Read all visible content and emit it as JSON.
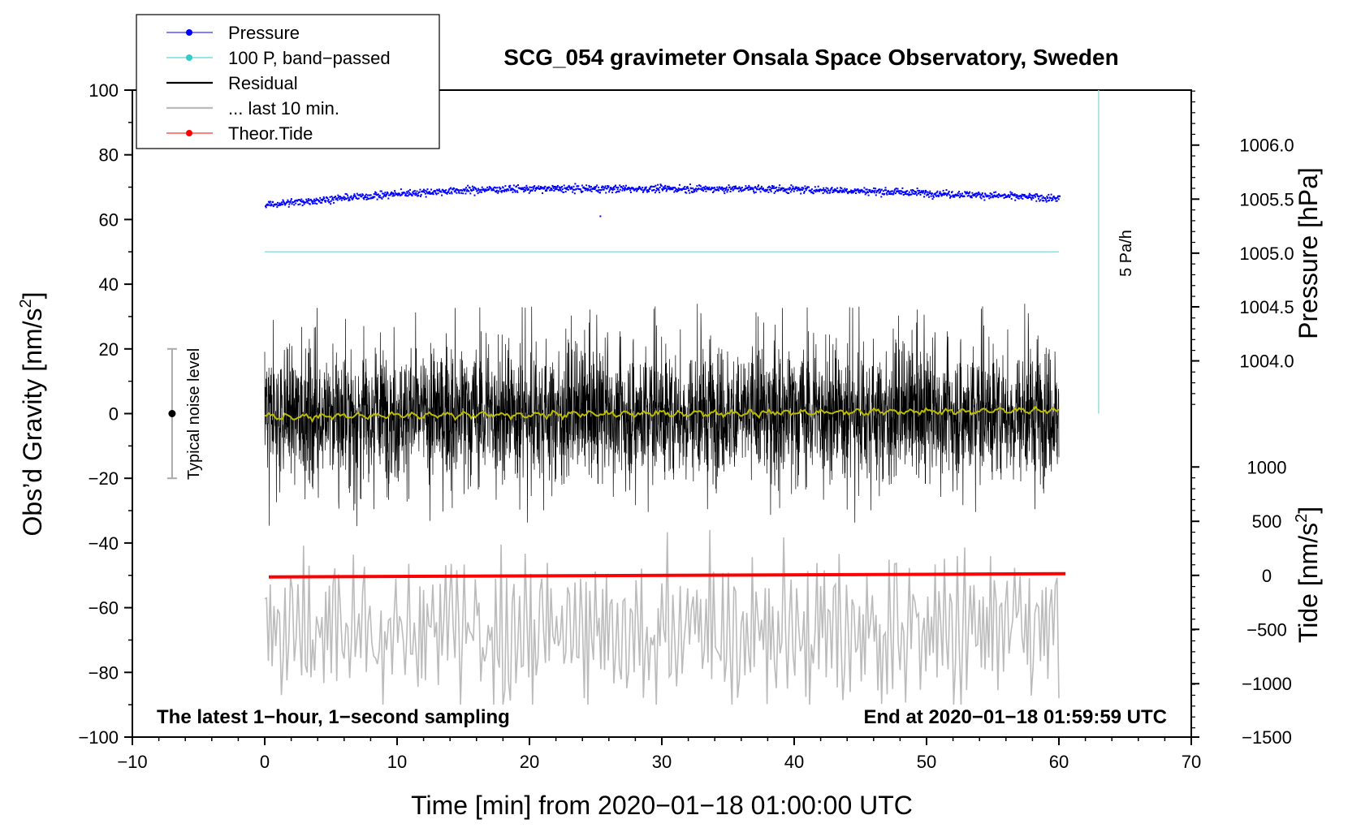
{
  "chart_data": {
    "type": "line",
    "title": "SCG_054 gravimeter Onsala Space Observatory, Sweden",
    "xlabel": "Time [min] from 2020−01−18 01:00:00 UTC",
    "ylabel": "Obs’d Gravity [nm/s²]",
    "ylabel_main": "Obs’d Gravity [nm/s",
    "ylabel_sup": "2",
    "ylabel_end": "]",
    "y2label": "Pressure [hPa]",
    "y3label_main": "Tide [nm/s",
    "y3label_sup": "2",
    "y3label_end": "]",
    "xlim": [
      -10,
      70
    ],
    "ylim": [
      -100,
      100
    ],
    "xticks": [
      -10,
      0,
      10,
      20,
      30,
      40,
      50,
      60,
      70
    ],
    "xtick_labels": [
      "−10",
      "0",
      "10",
      "20",
      "30",
      "40",
      "50",
      "60",
      "70"
    ],
    "yticks": [
      100,
      80,
      60,
      40,
      20,
      0,
      -20,
      -40,
      -60,
      -80,
      -100
    ],
    "ytick_labels": [
      "100",
      "80",
      "60",
      "40",
      "20",
      "0",
      "−20",
      "−40",
      "−60",
      "−80",
      "−100"
    ],
    "pressure_axis": {
      "ticks": [
        1006.0,
        1005.5,
        1005.0,
        1004.5,
        1004.0
      ],
      "labels": [
        "1006.0",
        "1005.5",
        "1005.0",
        "1004.5",
        "1004.0"
      ],
      "gravity_equiv": [
        83,
        66.3,
        49.6,
        33,
        16.3
      ]
    },
    "tide_axis": {
      "ticks": [
        1000,
        500,
        0,
        -500,
        -1000,
        -1500
      ],
      "labels": [
        "1000",
        "500",
        "0",
        "−500",
        "−1000",
        "−1500"
      ],
      "gravity_equiv": [
        -16.5,
        -33.3,
        -50,
        -66.7,
        -83.5,
        -100
      ]
    },
    "legend": {
      "placement": "top-left",
      "entries": [
        {
          "label": "Pressure",
          "color": "#0000ff",
          "marker": true
        },
        {
          "label": "100 P, band−passed",
          "color": "#33cccc",
          "marker": true
        },
        {
          "label": "Residual",
          "color": "#000000",
          "marker": false
        },
        {
          "label": "... last 10 min.",
          "color": "#bbbbbb",
          "marker": false
        },
        {
          "label": "Theor.Tide",
          "color": "#ff0000",
          "marker": true
        }
      ]
    },
    "noise_label": "Typical noise level",
    "noise_bar": {
      "x": -7,
      "center": 0,
      "low": -20,
      "high": 20
    },
    "rate_label": "5 Pa/h",
    "rate_line": {
      "x": 63,
      "y_from": 0,
      "y_to": 100
    },
    "annotation_left": "The latest 1−hour, 1−second sampling",
    "annotation_right": "End at 2020−01−18 01:59:59 UTC",
    "series": [
      {
        "name": "Pressure",
        "color": "#0000ff",
        "x_range": [
          0,
          60
        ],
        "gravity_level_start": 64.5,
        "gravity_level_peak": 69.5,
        "gravity_level_end": 66.5
      },
      {
        "name": "100 P, band−passed",
        "color": "#99dddd",
        "x_range": [
          0,
          60
        ],
        "gravity_level": 50
      },
      {
        "name": "Residual",
        "color": "#000000",
        "x_range": [
          0,
          60
        ],
        "typical_range": [
          -28,
          30
        ],
        "extreme_range": [
          -39,
          36
        ]
      },
      {
        "name": "Residual smoothed",
        "color": "#bbbb00",
        "x_range": [
          0,
          60
        ],
        "gravity_level_start": -1,
        "gravity_level_end": 1
      },
      {
        "name": "... last 10 min.",
        "color": "#bbbbbb",
        "x_range": [
          0,
          60
        ],
        "gravity_range": [
          -90,
          -35
        ]
      },
      {
        "name": "Theor.Tide",
        "color": "#ff0000",
        "x_range": [
          0,
          60.5
        ],
        "gravity_level_start": -50.5,
        "gravity_level_end": -49.5
      }
    ]
  }
}
